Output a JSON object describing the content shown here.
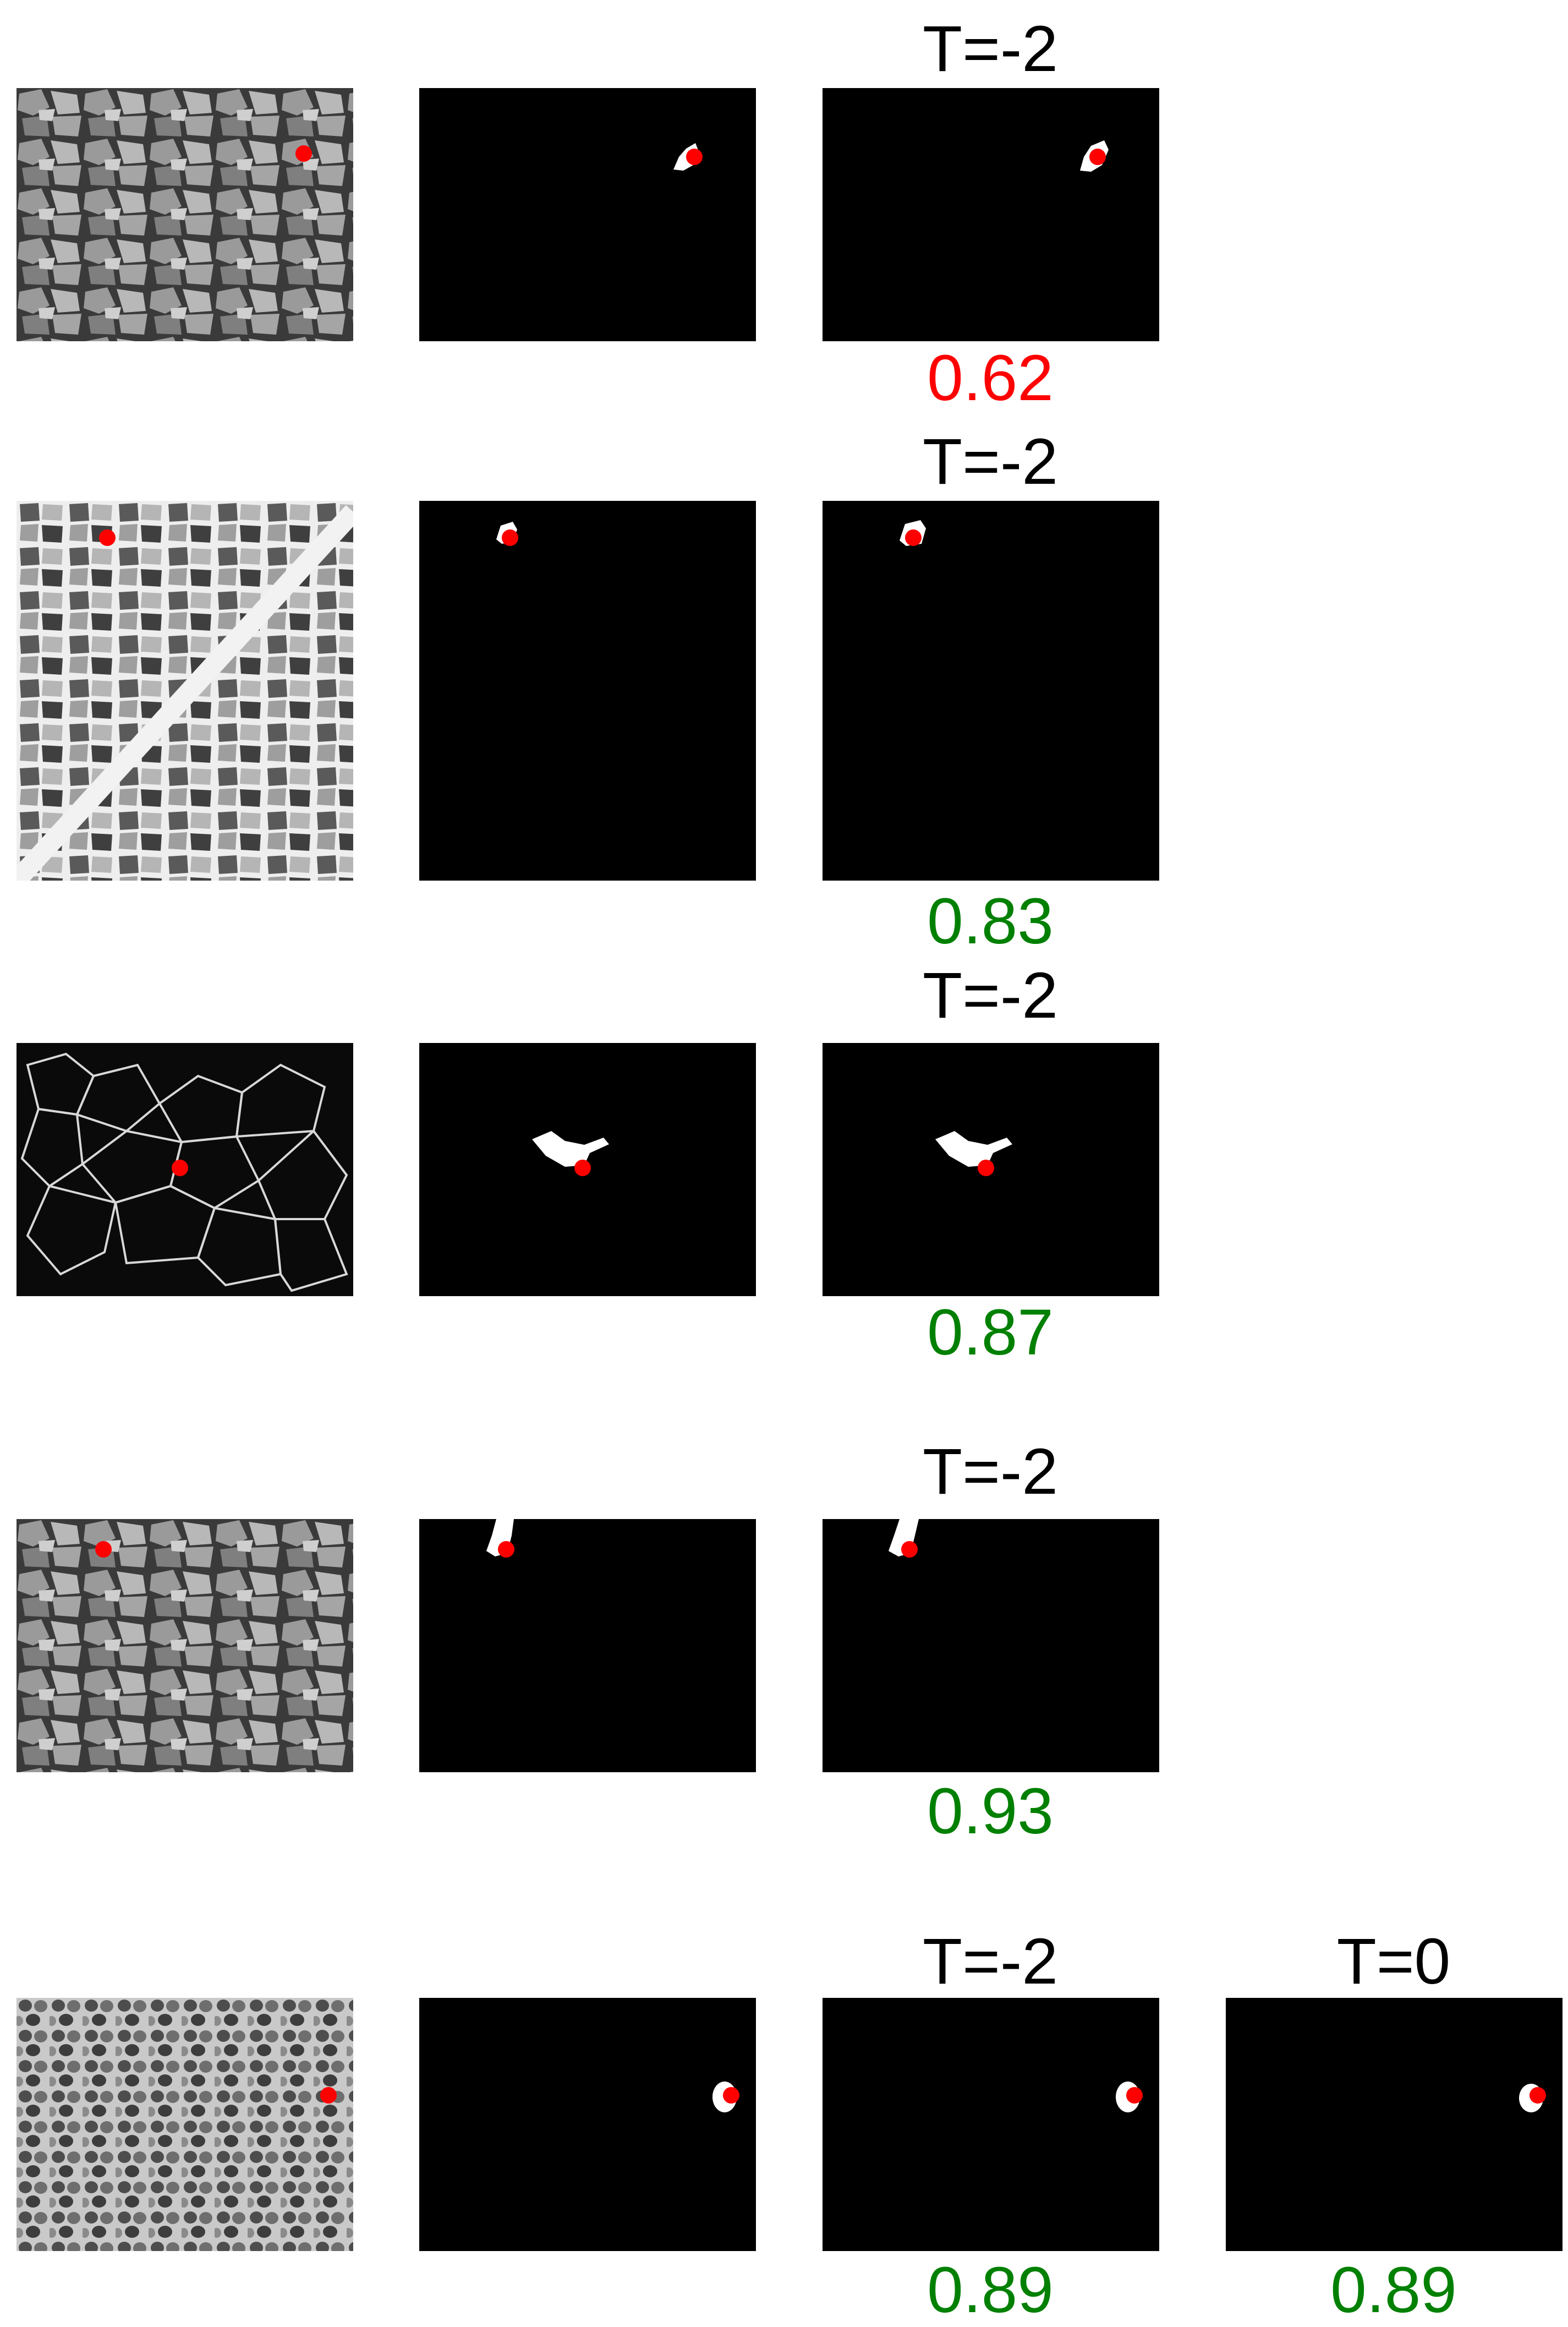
{
  "colors": {
    "background": "#ffffff",
    "panel": "#000000",
    "mask": "#ffffff",
    "click_point": "#ff0000",
    "score_bad": "#ff0000",
    "score_good": "#008000",
    "title": "#000000"
  },
  "rows": [
    {
      "input": "gravel-rocks",
      "columns": [
        {
          "title": "T=-2",
          "score": "0.62",
          "score_color": "#ff0000"
        }
      ]
    },
    {
      "input": "muscle-fiber-cells",
      "columns": [
        {
          "title": "T=-2",
          "score": "0.83",
          "score_color": "#008000"
        }
      ]
    },
    {
      "input": "membrane-stained-cells",
      "columns": [
        {
          "title": "T=-2",
          "score": "0.87",
          "score_color": "#008000"
        }
      ]
    },
    {
      "input": "gravel-rocks",
      "columns": [
        {
          "title": "T=-2",
          "score": "0.93",
          "score_color": "#008000"
        }
      ]
    },
    {
      "input": "dense-cell-tissue",
      "columns": [
        {
          "title": "T=-2",
          "score": "0.89",
          "score_color": "#008000"
        },
        {
          "title": "T=0",
          "score": "0.89",
          "score_color": "#008000"
        }
      ]
    }
  ]
}
